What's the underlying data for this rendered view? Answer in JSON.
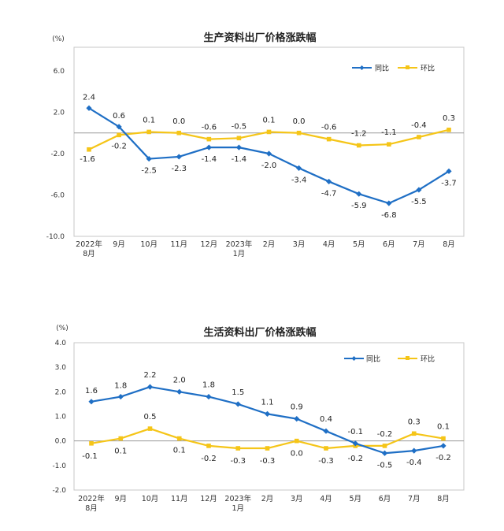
{
  "colors": {
    "yoy": "#1f6fc5",
    "mom": "#f5c518",
    "frame": "#c7c7c7",
    "baseline": "#9a9a9a"
  },
  "chart_data": [
    {
      "type": "line",
      "title": "生产资料出厂价格涨跌幅",
      "unit": "(%)",
      "categories": [
        "2022年|8月",
        "9月",
        "10月",
        "11月",
        "12月",
        "2023年|1月",
        "2月",
        "3月",
        "4月",
        "5月",
        "6月",
        "7月",
        "8月"
      ],
      "ylim": [
        -10.0,
        6.0
      ],
      "yticks": [
        "6.0",
        "2.0",
        "-2.0",
        "-6.0",
        "-10.0"
      ],
      "ytick_values": [
        6,
        2,
        -2,
        -6,
        -10
      ],
      "legend_position": "top-right",
      "series": [
        {
          "name": "同比",
          "key": "yoy",
          "values": [
            2.4,
            0.6,
            -2.5,
            -2.3,
            -1.4,
            -1.4,
            -2.0,
            -3.4,
            -4.7,
            -5.9,
            -6.8,
            -5.5,
            -3.7
          ],
          "labels": [
            "2.4",
            "0.6",
            "-2.5",
            "-2.3",
            "-1.4",
            "-1.4",
            "-2.0",
            "-3.4",
            "-4.7",
            "-5.9",
            "-6.8",
            "-5.5",
            "-3.7"
          ]
        },
        {
          "name": "环比",
          "key": "mom",
          "values": [
            -1.6,
            -0.2,
            0.1,
            0.0,
            -0.6,
            -0.5,
            0.1,
            0.0,
            -0.6,
            -1.2,
            -1.1,
            -0.4,
            0.3
          ],
          "labels": [
            "-1.6",
            "-0.2",
            "0.1",
            "0.0",
            "-0.6",
            "-0.5",
            "0.1",
            "0.0",
            "-0.6",
            "-1.2",
            "-1.1",
            "-0.4",
            "0.3"
          ]
        }
      ]
    },
    {
      "type": "line",
      "title": "生活资料出厂价格涨跌幅",
      "unit": "(%)",
      "categories": [
        "2022年|8月",
        "9月",
        "10月",
        "11月",
        "12月",
        "2023年|1月",
        "2月",
        "3月",
        "4月",
        "5月",
        "6月",
        "7月",
        "8月"
      ],
      "ylim": [
        -2.0,
        4.0
      ],
      "yticks": [
        "4.0",
        "3.0",
        "2.0",
        "1.0",
        "0.0",
        "-1.0",
        "-2.0"
      ],
      "ytick_values": [
        4,
        3,
        2,
        1,
        0,
        -1,
        -2
      ],
      "legend_position": "top-right",
      "series": [
        {
          "name": "同比",
          "key": "yoy",
          "values": [
            1.6,
            1.8,
            2.2,
            2.0,
            1.8,
            1.5,
            1.1,
            0.9,
            0.4,
            -0.1,
            -0.5,
            -0.4,
            -0.2
          ],
          "labels": [
            "1.6",
            "1.8",
            "2.2",
            "2.0",
            "1.8",
            "1.5",
            "1.1",
            "0.9",
            "0.4",
            "-0.1",
            "-0.5",
            "-0.4",
            "-0.2"
          ]
        },
        {
          "name": "环比",
          "key": "mom",
          "values": [
            -0.1,
            0.1,
            0.5,
            0.1,
            -0.2,
            -0.3,
            -0.3,
            0.0,
            -0.3,
            -0.2,
            -0.2,
            0.3,
            0.1
          ],
          "labels": [
            "-0.1",
            "0.1",
            "0.5",
            "0.1",
            "-0.2",
            "-0.3",
            "-0.3",
            "0.0",
            "-0.3",
            "-0.2",
            "-0.2",
            "0.3",
            "0.1"
          ]
        }
      ]
    }
  ]
}
